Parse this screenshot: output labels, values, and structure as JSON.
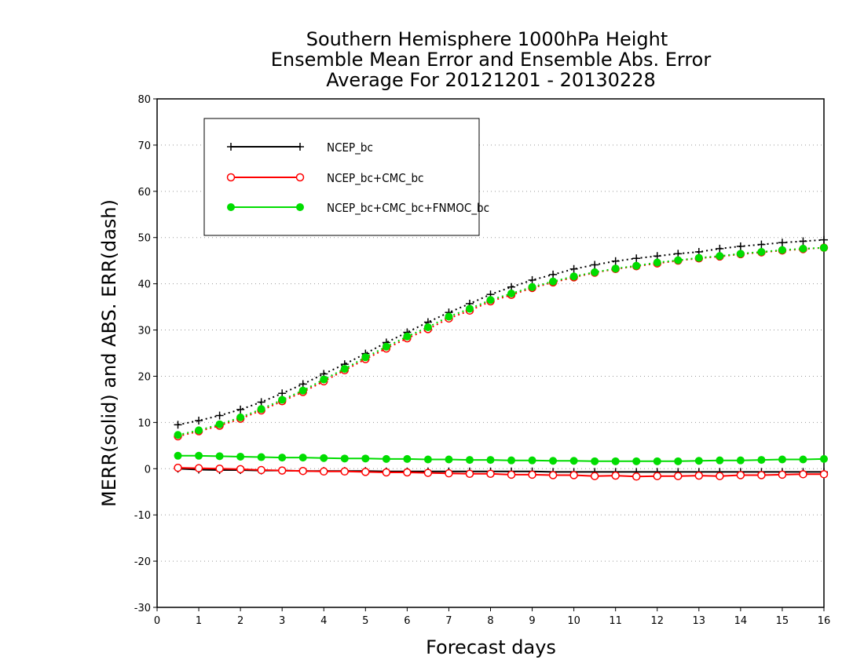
{
  "chart_data": {
    "type": "line",
    "title_lines": [
      "Southern Hemisphere 1000hPa Height",
      "Ensemble Mean Error and Ensemble Abs. Error",
      "Average For 20121201 - 20130228"
    ],
    "xlabel": "Forecast days",
    "ylabel": "MERR(solid) and ABS. ERR(dash)",
    "xlim": [
      0,
      16
    ],
    "ylim": [
      -30,
      80
    ],
    "xticks": [
      "0",
      "1",
      "2",
      "3",
      "4",
      "5",
      "6",
      "7",
      "8",
      "9",
      "10",
      "11",
      "12",
      "13",
      "14",
      "15",
      "16"
    ],
    "yticks": [
      "80",
      "70",
      "60",
      "50",
      "40",
      "30",
      "20",
      "10",
      "0",
      "-10",
      "-20",
      "-30"
    ],
    "grid": "horizontal dotted",
    "legend_position": "top-left",
    "x": [
      0.5,
      1,
      1.5,
      2,
      2.5,
      3,
      3.5,
      4,
      4.5,
      5,
      5.5,
      6,
      6.5,
      7,
      7.5,
      8,
      8.5,
      9,
      9.5,
      10,
      10.5,
      11,
      11.5,
      12,
      12.5,
      13,
      13.5,
      14,
      14.5,
      15,
      15.5,
      16
    ],
    "series": [
      {
        "name": "NCEP_bc",
        "color": "#000000",
        "marker": "plus",
        "merr": [
          0.0,
          -0.2,
          -0.3,
          -0.3,
          -0.4,
          -0.4,
          -0.5,
          -0.5,
          -0.5,
          -0.5,
          -0.6,
          -0.6,
          -0.6,
          -0.6,
          -0.6,
          -0.6,
          -0.6,
          -0.6,
          -0.7,
          -0.7,
          -0.7,
          -0.7,
          -0.7,
          -0.7,
          -0.7,
          -0.7,
          -0.7,
          -0.7,
          -0.7,
          -0.7,
          -0.7,
          -0.7
        ],
        "abs_err": [
          9.5,
          10.4,
          11.5,
          12.8,
          14.4,
          16.3,
          18.3,
          20.5,
          22.6,
          24.9,
          27.3,
          29.5,
          31.7,
          33.8,
          35.7,
          37.7,
          39.3,
          40.8,
          42.0,
          43.2,
          44.1,
          44.9,
          45.5,
          46.0,
          46.5,
          46.9,
          47.6,
          48.1,
          48.5,
          48.9,
          49.2,
          49.5
        ]
      },
      {
        "name": "NCEP_bc+CMC_bc",
        "color": "#ff0000",
        "marker": "open-circle",
        "merr": [
          0.2,
          0.1,
          0.0,
          -0.1,
          -0.3,
          -0.4,
          -0.5,
          -0.6,
          -0.6,
          -0.7,
          -0.8,
          -0.8,
          -0.9,
          -1.0,
          -1.1,
          -1.1,
          -1.3,
          -1.3,
          -1.4,
          -1.4,
          -1.6,
          -1.5,
          -1.7,
          -1.6,
          -1.6,
          -1.5,
          -1.6,
          -1.4,
          -1.4,
          -1.3,
          -1.2,
          -1.2
        ],
        "abs_err": [
          7.0,
          8.1,
          9.3,
          10.8,
          12.6,
          14.6,
          16.6,
          18.9,
          21.3,
          23.7,
          26.0,
          28.2,
          30.2,
          32.5,
          34.2,
          36.2,
          37.6,
          39.1,
          40.3,
          41.4,
          42.4,
          43.2,
          43.8,
          44.4,
          45.0,
          45.5,
          45.9,
          46.4,
          46.8,
          47.2,
          47.5,
          47.8
        ]
      },
      {
        "name": "NCEP_bc+CMC_bc+FNMOC_bc",
        "color": "#00dd00",
        "marker": "filled-circle",
        "merr": [
          2.8,
          2.8,
          2.7,
          2.6,
          2.5,
          2.4,
          2.4,
          2.3,
          2.2,
          2.2,
          2.1,
          2.1,
          2.0,
          2.0,
          1.9,
          1.9,
          1.8,
          1.8,
          1.7,
          1.7,
          1.6,
          1.6,
          1.6,
          1.6,
          1.6,
          1.7,
          1.8,
          1.8,
          1.9,
          2.0,
          2.0,
          2.1
        ],
        "abs_err": [
          7.3,
          8.3,
          9.6,
          11.1,
          12.9,
          14.9,
          16.9,
          19.3,
          21.6,
          24.1,
          26.4,
          28.6,
          30.6,
          32.9,
          34.6,
          36.5,
          37.9,
          39.3,
          40.5,
          41.6,
          42.5,
          43.3,
          43.9,
          44.6,
          45.1,
          45.6,
          46.0,
          46.5,
          46.9,
          47.3,
          47.6,
          47.8
        ]
      }
    ]
  }
}
